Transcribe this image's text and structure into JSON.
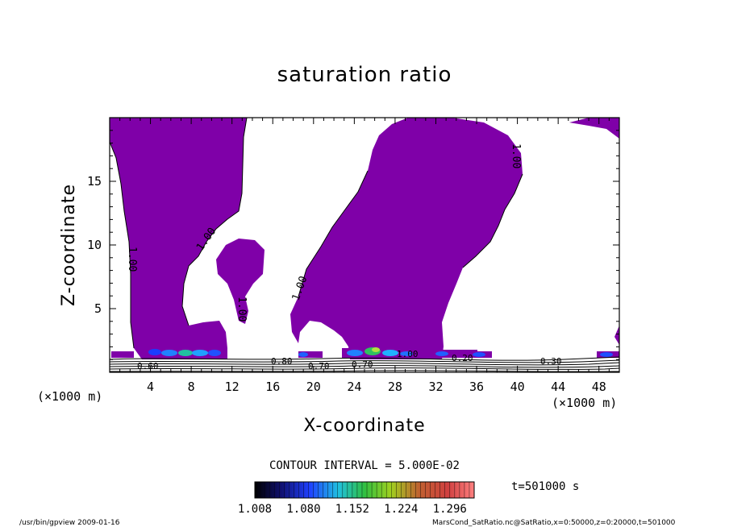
{
  "chart_data": {
    "type": "contour",
    "title": "saturation ratio",
    "xlabel": "X-coordinate",
    "ylabel": "Z-coordinate",
    "x_unit": "(×1000 m)",
    "y_unit": "(×1000 m)",
    "xlim": [
      0,
      50
    ],
    "ylim": [
      0,
      20
    ],
    "x_ticks": [
      4,
      8,
      12,
      16,
      20,
      24,
      28,
      32,
      36,
      40,
      44,
      48
    ],
    "y_ticks": [
      5,
      10,
      15
    ],
    "contour_interval": "CONTOUR INTERVAL = 5.000E-02",
    "time_label": "t=501000 s",
    "contour_labels": [
      "1.00",
      "1.00",
      "1.00",
      "1.00",
      "1.00",
      "1.00",
      "0.80",
      "0.70",
      "0.70",
      "0.60",
      "0.20",
      "0.30"
    ],
    "colorbar": {
      "min": 1.008,
      "max": 1.332,
      "tick_labels": [
        "1.008",
        "1.080",
        "1.152",
        "1.224",
        "1.296"
      ]
    },
    "shaded_region_color": "#7f00a8",
    "footer_left": "/usr/bin/gpview  2009-01-16",
    "footer_right": "MarsCond_SatRatio.nc@SatRatio,x=0:50000,z=0:20000,t=501000"
  }
}
